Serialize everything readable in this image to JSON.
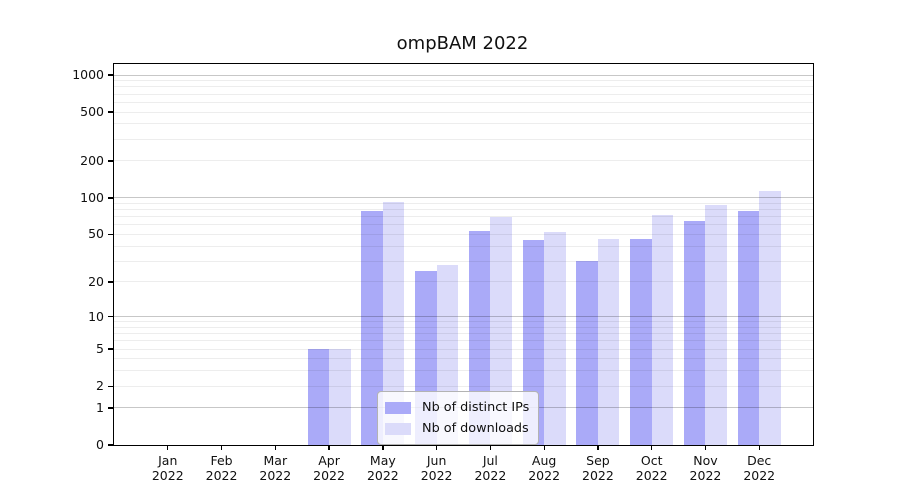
{
  "title": "ompBAM 2022",
  "colors": {
    "distinct_ips_bar": "#aaaaf8",
    "downloads_bar": "#dbdbfa",
    "axis": "#000000",
    "grid_minor": "#ebebeb",
    "grid_major": "#c3c3c3",
    "legend_border": "#b3b3b3"
  },
  "chart_data": {
    "type": "bar",
    "title": "ompBAM 2022",
    "x_months": [
      "Jan",
      "Feb",
      "Mar",
      "Apr",
      "May",
      "Jun",
      "Jul",
      "Aug",
      "Sep",
      "Oct",
      "Nov",
      "Dec"
    ],
    "x_year": "2022",
    "series": [
      {
        "name": "Nb of distinct IPs",
        "color": "#aaaaf8",
        "values": [
          0,
          0,
          0,
          5,
          78,
          25,
          53,
          45,
          30,
          46,
          65,
          78
        ]
      },
      {
        "name": "Nb of downloads",
        "color": "#dbdbfa",
        "values": [
          0,
          0,
          0,
          5,
          92,
          28,
          70,
          52,
          46,
          73,
          87,
          113
        ]
      }
    ],
    "y_scale": "log1p",
    "ylim": [
      0,
      1210
    ],
    "y_ticks": [
      0,
      1,
      2,
      5,
      10,
      20,
      50,
      100,
      200,
      500,
      1000
    ],
    "y_gridlines_major": [
      1,
      10,
      100,
      1000
    ],
    "y_gridlines_minor": [
      2,
      3,
      4,
      5,
      6,
      7,
      8,
      9,
      20,
      30,
      40,
      50,
      60,
      70,
      80,
      90,
      200,
      300,
      400,
      500,
      600,
      700,
      800,
      900
    ],
    "grid": true,
    "legend_position": "bottom-center",
    "xlabel": "",
    "ylabel": ""
  }
}
